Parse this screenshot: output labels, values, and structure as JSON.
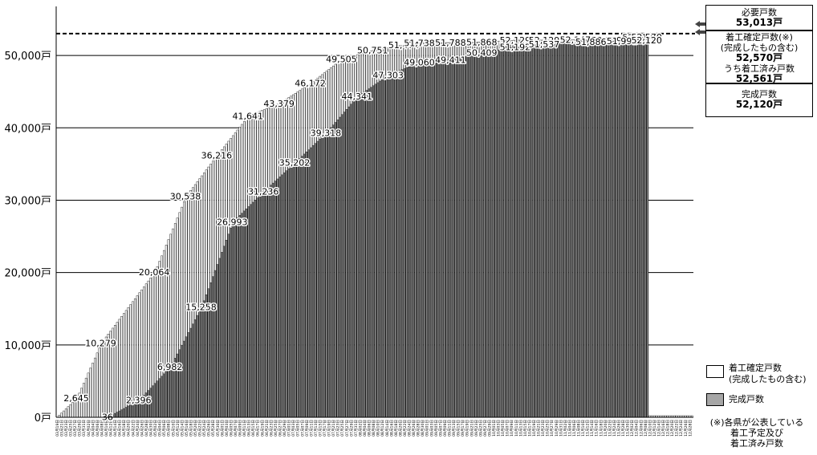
{
  "chart_data": {
    "type": "bar",
    "title": "",
    "xlabel": "",
    "ylabel": "",
    "ylim": [
      0,
      56000
    ],
    "grid": true,
    "y_unit": "戸",
    "y_ticks": [
      "0戸",
      "10,000戸",
      "20,000戸",
      "30,000戸",
      "40,000戸",
      "50,000戸"
    ],
    "target": {
      "label": "必要戸数",
      "value": 53013,
      "style": "dashed"
    },
    "x_start": "2011-03-19",
    "x_end": "2011-12-29",
    "series": [
      {
        "name": "着工確定戸数(完成したもの含む)",
        "color": "#ffffff",
        "points": [
          [
            "03月28日",
            2645
          ],
          [
            "04月08日",
            10279
          ],
          [
            "05月02日",
            20064
          ],
          [
            "05月16日",
            30538
          ],
          [
            "05月30日",
            36216
          ],
          [
            "06月13日",
            41641
          ],
          [
            "06月27日",
            43379
          ],
          [
            "07月11日",
            46172
          ],
          [
            "07月25日",
            49505
          ],
          [
            "08月08日",
            50751
          ],
          [
            "08月22日",
            51474
          ],
          [
            "08月29日",
            51738
          ],
          [
            "09月12日",
            51788
          ],
          [
            "09月26日",
            51868
          ],
          [
            "10月11日",
            52129
          ],
          [
            "10月24日",
            52129
          ],
          [
            "11月07日",
            52147
          ],
          [
            "11月21日",
            52129
          ],
          [
            "12月05日",
            52517
          ],
          [
            "12月09日",
            52570
          ]
        ]
      },
      {
        "name": "完成戸数",
        "color": "#a6a6a6",
        "points": [
          [
            "04月11日",
            36
          ],
          [
            "04月25日",
            2396
          ],
          [
            "05月09日",
            6982
          ],
          [
            "05月23日",
            15258
          ],
          [
            "06月06日",
            26993
          ],
          [
            "06月20日",
            31236
          ],
          [
            "07月04日",
            35202
          ],
          [
            "07月18日",
            39318
          ],
          [
            "08月01日",
            44341
          ],
          [
            "08月15日",
            47303
          ],
          [
            "08月29日",
            49060
          ],
          [
            "09月12日",
            49411
          ],
          [
            "09月26日",
            50409
          ],
          [
            "10月11日",
            51192
          ],
          [
            "10月24日",
            51537
          ],
          [
            "11月14日",
            51886
          ],
          [
            "11月28日",
            51991
          ],
          [
            "12月09日",
            52120
          ]
        ]
      }
    ]
  },
  "info_panel": {
    "required_label": "必要戸数",
    "required_value": "53,013戸",
    "start_label_1": "着工確定戸数(※)",
    "start_label_2": "(完成したもの含む)",
    "start_value": "52,570戸",
    "started_label": "うち着工済み戸数",
    "started_value": "52,561戸",
    "completed_label": "完成戸数",
    "completed_value": "52,120戸"
  },
  "legend": {
    "item1_line1": "着工確定戸数",
    "item1_line2": "(完成したもの含む)",
    "item2": "完成戸数"
  },
  "note": {
    "line1": "(※)各県が公表している",
    "line2": "着工予定及び",
    "line3": "着工済み戸数"
  }
}
